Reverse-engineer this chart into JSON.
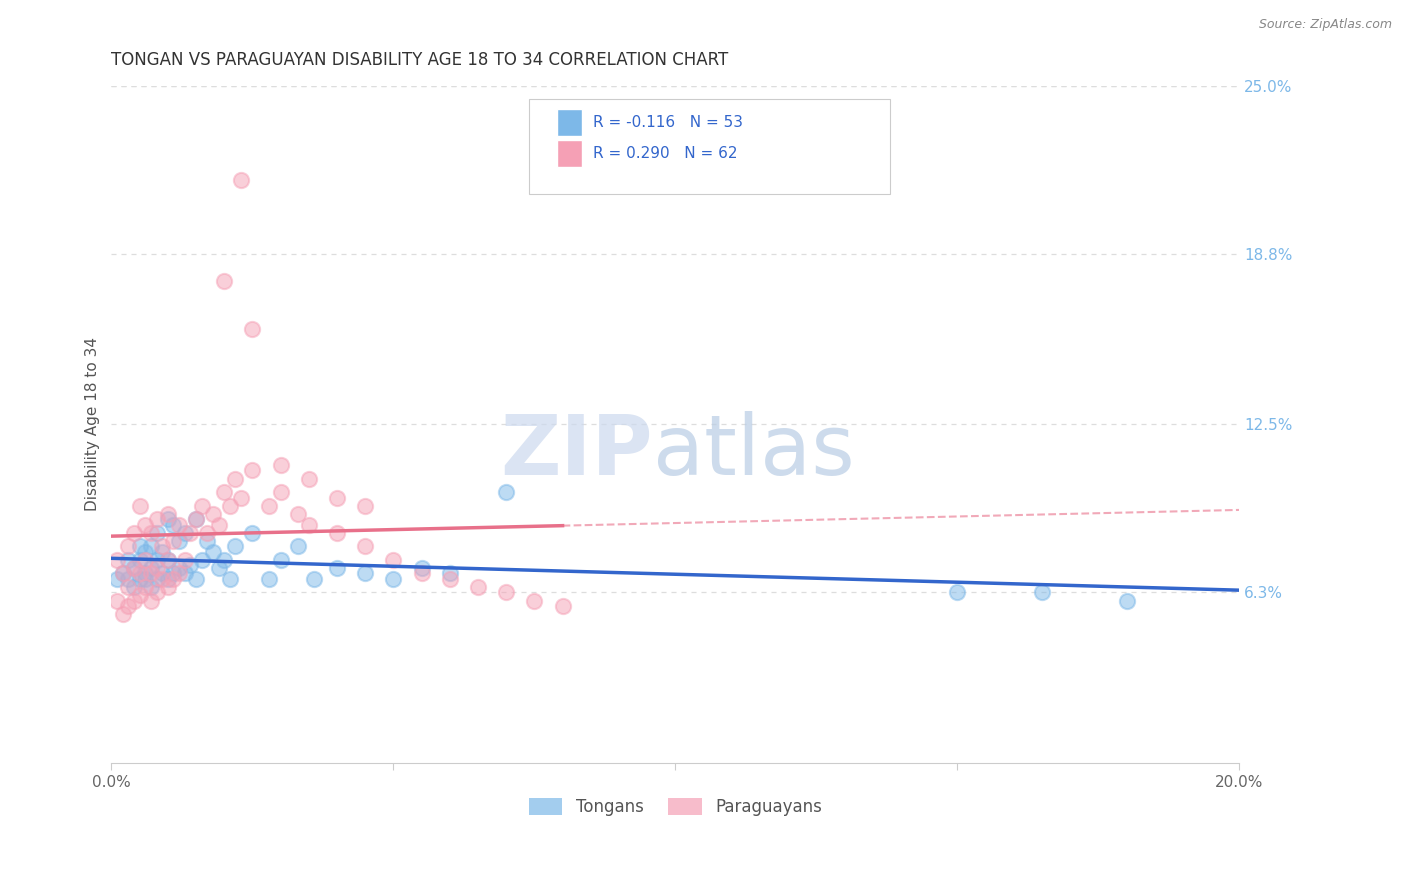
{
  "title": "TONGAN VS PARAGUAYAN DISABILITY AGE 18 TO 34 CORRELATION CHART",
  "source": "Source: ZipAtlas.com",
  "ylabel_left": "Disability Age 18 to 34",
  "xlim": [
    0.0,
    0.2
  ],
  "ylim": [
    0.0,
    0.25
  ],
  "xtick_labels": [
    "0.0%",
    "20.0%"
  ],
  "ytick_labels": [
    "6.3%",
    "12.5%",
    "18.8%",
    "25.0%"
  ],
  "ytick_values": [
    0.063,
    0.125,
    0.188,
    0.25
  ],
  "xtick_values": [
    0.0,
    0.2
  ],
  "grid_color": "#cccccc",
  "background_color": "#ffffff",
  "tongan_color": "#7db8e8",
  "paraguayan_color": "#f5a0b5",
  "tongan_line_color": "#3366cc",
  "paraguayan_line_color": "#e8708a",
  "watermark_zip": "ZIP",
  "watermark_atlas": "atlas",
  "legend_text1": "R = -0.116   N = 53",
  "legend_text2": "R = 0.290   N = 62",
  "tongan_label": "Tongans",
  "paraguayan_label": "Paraguayans",
  "tongan_scatter_x": [
    0.001,
    0.002,
    0.003,
    0.003,
    0.004,
    0.004,
    0.005,
    0.005,
    0.005,
    0.006,
    0.006,
    0.006,
    0.007,
    0.007,
    0.007,
    0.008,
    0.008,
    0.008,
    0.009,
    0.009,
    0.01,
    0.01,
    0.01,
    0.011,
    0.011,
    0.012,
    0.012,
    0.013,
    0.013,
    0.014,
    0.015,
    0.015,
    0.016,
    0.017,
    0.018,
    0.019,
    0.02,
    0.021,
    0.022,
    0.025,
    0.028,
    0.03,
    0.033,
    0.036,
    0.04,
    0.045,
    0.05,
    0.055,
    0.06,
    0.07,
    0.15,
    0.165,
    0.18
  ],
  "tongan_scatter_y": [
    0.068,
    0.07,
    0.068,
    0.075,
    0.065,
    0.072,
    0.068,
    0.075,
    0.08,
    0.068,
    0.07,
    0.078,
    0.065,
    0.072,
    0.08,
    0.068,
    0.075,
    0.085,
    0.07,
    0.078,
    0.068,
    0.075,
    0.09,
    0.07,
    0.088,
    0.072,
    0.082,
    0.07,
    0.085,
    0.073,
    0.068,
    0.09,
    0.075,
    0.082,
    0.078,
    0.072,
    0.075,
    0.068,
    0.08,
    0.085,
    0.068,
    0.075,
    0.08,
    0.068,
    0.072,
    0.07,
    0.068,
    0.072,
    0.07,
    0.1,
    0.063,
    0.063,
    0.06
  ],
  "paraguayan_scatter_x": [
    0.001,
    0.001,
    0.002,
    0.002,
    0.003,
    0.003,
    0.003,
    0.004,
    0.004,
    0.004,
    0.005,
    0.005,
    0.005,
    0.006,
    0.006,
    0.006,
    0.007,
    0.007,
    0.007,
    0.008,
    0.008,
    0.008,
    0.009,
    0.009,
    0.01,
    0.01,
    0.01,
    0.011,
    0.011,
    0.012,
    0.012,
    0.013,
    0.014,
    0.015,
    0.016,
    0.017,
    0.018,
    0.019,
    0.02,
    0.021,
    0.022,
    0.023,
    0.025,
    0.028,
    0.03,
    0.033,
    0.035,
    0.04,
    0.045,
    0.05,
    0.055,
    0.06,
    0.065,
    0.07,
    0.075,
    0.08,
    0.03,
    0.035,
    0.04,
    0.045,
    0.02,
    0.025
  ],
  "paraguayan_scatter_y": [
    0.06,
    0.075,
    0.055,
    0.07,
    0.058,
    0.065,
    0.08,
    0.06,
    0.072,
    0.085,
    0.062,
    0.07,
    0.095,
    0.065,
    0.075,
    0.088,
    0.06,
    0.07,
    0.085,
    0.063,
    0.072,
    0.09,
    0.068,
    0.08,
    0.065,
    0.075,
    0.092,
    0.068,
    0.082,
    0.07,
    0.088,
    0.075,
    0.085,
    0.09,
    0.095,
    0.085,
    0.092,
    0.088,
    0.1,
    0.095,
    0.105,
    0.098,
    0.108,
    0.095,
    0.1,
    0.092,
    0.088,
    0.085,
    0.08,
    0.075,
    0.07,
    0.068,
    0.065,
    0.063,
    0.06,
    0.058,
    0.11,
    0.105,
    0.098,
    0.095,
    0.178,
    0.16
  ],
  "paraguayan_outlier_x": [
    0.023
  ],
  "paraguayan_outlier_y": [
    0.215
  ]
}
